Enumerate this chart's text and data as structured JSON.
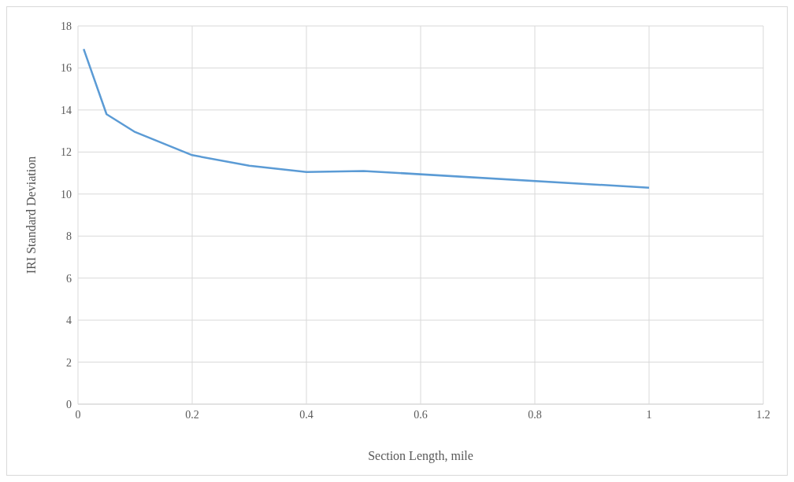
{
  "chart_data": {
    "type": "line",
    "xlabel": "Section Length, mile",
    "ylabel": "IRI Standard Deviation",
    "x": [
      0.01,
      0.05,
      0.1,
      0.2,
      0.3,
      0.4,
      0.5,
      1.0
    ],
    "series": [
      {
        "color": "#5b9bd5",
        "values": [
          16.9,
          13.8,
          12.95,
          11.85,
          11.35,
          11.05,
          11.1,
          10.3
        ]
      }
    ],
    "xlim": [
      0,
      1.2
    ],
    "xticks": [
      0,
      0.2,
      0.4,
      0.6,
      0.8,
      1,
      1.2
    ],
    "ylim": [
      0,
      18
    ],
    "yticks": [
      0,
      2,
      4,
      6,
      8,
      10,
      12,
      14,
      16,
      18
    ],
    "grid": true,
    "marker": "none",
    "line_style": "solid"
  }
}
